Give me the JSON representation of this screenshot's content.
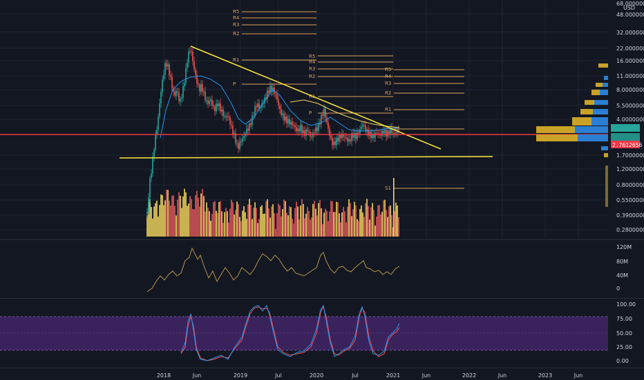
{
  "main_chart": {
    "currency": "USD",
    "price_scale_labels": [
      "68.0000000",
      "48.0000000",
      "32.0000000",
      "22.0000000",
      "16.0000000",
      "11.0000000",
      "8.0000000",
      "5.5000000",
      "4.0000000",
      "1.7000000",
      "1.2000000",
      "0.8000000",
      "0.5500000",
      "0.3900000",
      "0.2800000"
    ],
    "current_price": "2.7612656",
    "price_badge_colors": {
      "current": "#f23645",
      "other": "#26a69a",
      "up": "#26a69a",
      "down": "#ef5350"
    },
    "pivot_groups": [
      {
        "labels": [
          "R5",
          "R4",
          "R3",
          "R2"
        ]
      },
      {
        "labels": [
          "R1",
          "P"
        ]
      },
      {
        "labels": [
          "R5",
          "R4",
          "R3",
          "R2",
          "R1",
          "P"
        ]
      },
      {
        "labels": [
          "R5",
          "R4",
          "R3",
          "R2",
          "R1",
          "S1"
        ]
      }
    ],
    "colors": {
      "trendline": "#ffeb3b",
      "support": "#ffeb3b",
      "horizontal": "#f23645",
      "ma": "#2196f3",
      "pivot": "#e0a45a",
      "volume_up": "#f5d85e",
      "volume_down": "#e0585b",
      "vp_up": "#c9a227",
      "vp_down": "#2a7fd4"
    }
  },
  "volume_indicator": {
    "scale_labels": [
      "120M",
      "80M",
      "40M",
      "0"
    ],
    "line_color": "#b8964a"
  },
  "stoch_indicator": {
    "scale_labels": [
      "100.00",
      "75.00",
      "50.00",
      "25.00",
      "0.00"
    ],
    "k_color": "#2196f3",
    "d_color": "#ff5252",
    "band_color": "#5b2d8e"
  },
  "time_axis": {
    "labels": [
      "2018",
      "Jun",
      "2019",
      "Jul",
      "2020",
      "Jul",
      "2021",
      "Jun",
      "2022",
      "Jun",
      "2023",
      "Jun"
    ]
  }
}
